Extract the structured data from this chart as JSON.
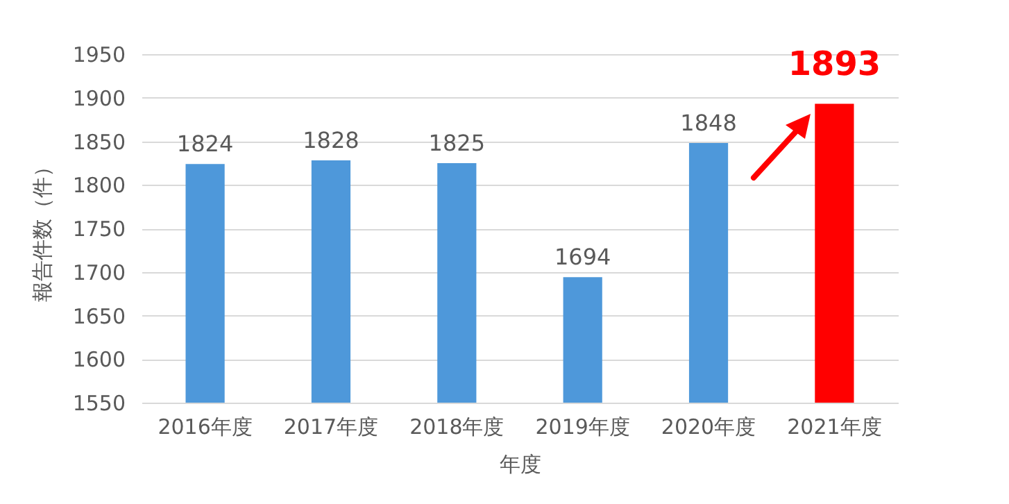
{
  "chart_data": {
    "type": "bar",
    "categories": [
      "2016年度",
      "2017年度",
      "2018年度",
      "2019年度",
      "2020年度",
      "2021年度"
    ],
    "values": [
      1824,
      1828,
      1825,
      1694,
      1848,
      1893
    ],
    "colors": [
      "#4e98da",
      "#4e98da",
      "#4e98da",
      "#4e98da",
      "#4e98da",
      "#ff0000"
    ],
    "xlabel": "年度",
    "ylabel": "報告件数（件）",
    "ylim": [
      1550,
      1950
    ],
    "yticks": [
      1550,
      1600,
      1650,
      1700,
      1750,
      1800,
      1850,
      1900,
      1950
    ],
    "grid": "y",
    "data_labels": true
  }
}
